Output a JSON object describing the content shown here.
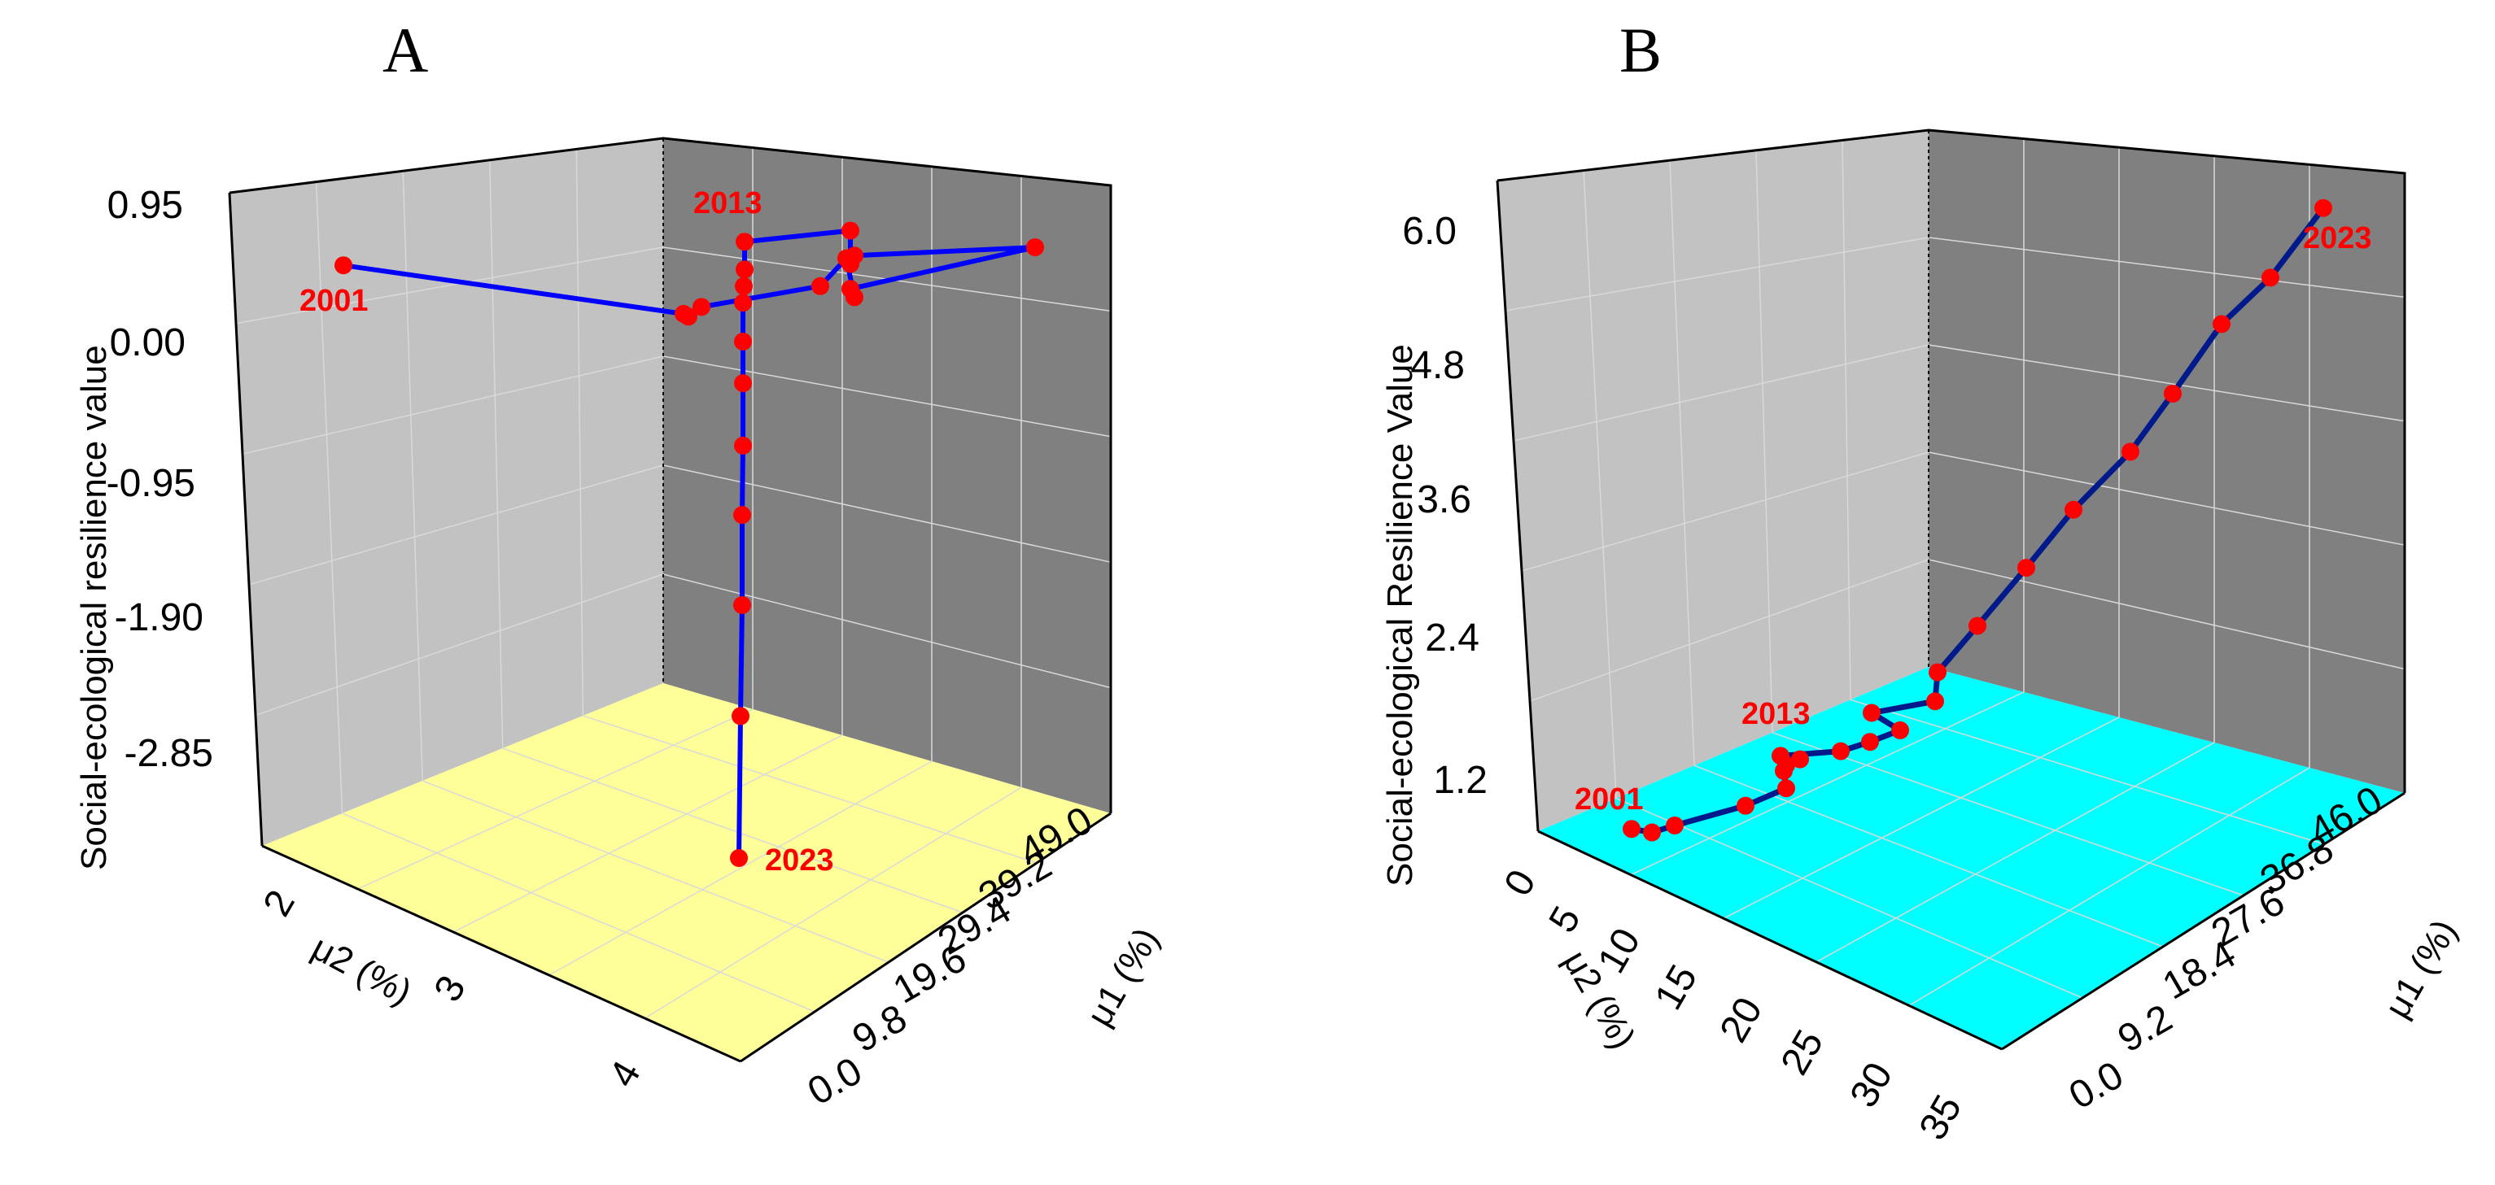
{
  "colors": {
    "back_wall": "#c2c2c2",
    "side_wall": "#808080",
    "floor_a": "#ffff99",
    "floor_b": "#00ffff",
    "line_a": "#0000ff",
    "line_b": "#001a8c",
    "points": "#ff0000"
  },
  "chart_data": [
    {
      "panel": "A",
      "type": "line3d",
      "zlabel": "Social-ecological resilience value",
      "xlabel": "μ1 (%)",
      "ylabel": "μ2 (%)",
      "z_ticks": [
        "0.95",
        "0.00",
        "-0.95",
        "-1.90",
        "-2.85"
      ],
      "x_ticks": [
        "0.0",
        "9.8",
        "19.6",
        "29.4",
        "39.2",
        "49.0"
      ],
      "y_ticks": [
        "2",
        "3",
        "4"
      ],
      "zlim": [
        -3.8,
        0.95
      ],
      "series": [
        {
          "name": "trajectory",
          "points": [
            {
              "year": "2001",
              "z": 0.55
            },
            {
              "year": "2002",
              "z": 0.2
            },
            {
              "year": "2003",
              "z": 0.18
            },
            {
              "year": "2004",
              "z": 0.25
            },
            {
              "year": "2005",
              "z": 0.4
            },
            {
              "year": "2006",
              "z": 0.6
            },
            {
              "year": "2007",
              "z": 0.32
            },
            {
              "year": "2008",
              "z": 0.38
            },
            {
              "year": "2009",
              "z": 0.68
            },
            {
              "year": "2010",
              "z": 0.62
            },
            {
              "year": "2011",
              "z": 0.56
            },
            {
              "year": "2012",
              "z": 0.8
            },
            {
              "year": "2013",
              "z": 0.72
            },
            {
              "year": "2014",
              "z": 0.52
            },
            {
              "year": "2015",
              "z": 0.4
            },
            {
              "year": "2016",
              "z": 0.28
            },
            {
              "year": "2017",
              "z": 0.0
            },
            {
              "year": "2018",
              "z": -0.3
            },
            {
              "year": "2019",
              "z": -0.75
            },
            {
              "year": "2020",
              "z": -1.25
            },
            {
              "year": "2021",
              "z": -1.9
            },
            {
              "year": "2022",
              "z": -2.7
            },
            {
              "year": "2023",
              "z": -3.65
            }
          ]
        }
      ],
      "annotations": [
        "2001",
        "2013",
        "2023"
      ]
    },
    {
      "panel": "B",
      "type": "line3d",
      "zlabel": "Social-ecological Resilience Value",
      "xlabel": "μ1 (%)",
      "ylabel": "μ2 (%)",
      "z_ticks": [
        "6.0",
        "4.8",
        "3.6",
        "2.4",
        "1.2"
      ],
      "x_ticks": [
        "0.0",
        "9.2",
        "18.4",
        "27.6",
        "36.8",
        "46.0"
      ],
      "y_ticks": [
        "0",
        "5",
        "10",
        "15",
        "20",
        "25",
        "30",
        "35"
      ],
      "zlim": [
        0.75,
        6.0
      ],
      "series": [
        {
          "name": "trajectory",
          "points": [
            {
              "year": "2001",
              "z": 0.75
            },
            {
              "year": "2002",
              "z": 0.72
            },
            {
              "year": "2003",
              "z": 0.78
            },
            {
              "year": "2004",
              "z": 0.95
            },
            {
              "year": "2005",
              "z": 1.1
            },
            {
              "year": "2006",
              "z": 1.25
            },
            {
              "year": "2007",
              "z": 1.3
            },
            {
              "year": "2008",
              "z": 1.35
            },
            {
              "year": "2009",
              "z": 1.38
            },
            {
              "year": "2010",
              "z": 1.42
            },
            {
              "year": "2011",
              "z": 1.5
            },
            {
              "year": "2012",
              "z": 1.6
            },
            {
              "year": "2013",
              "z": 1.75
            },
            {
              "year": "2014",
              "z": 1.85
            },
            {
              "year": "2015",
              "z": 2.1
            },
            {
              "year": "2016",
              "z": 2.5
            },
            {
              "year": "2017",
              "z": 3.0
            },
            {
              "year": "2018",
              "z": 3.5
            },
            {
              "year": "2019",
              "z": 4.0
            },
            {
              "year": "2020",
              "z": 4.5
            },
            {
              "year": "2021",
              "z": 5.1
            },
            {
              "year": "2022",
              "z": 5.5
            },
            {
              "year": "2023",
              "z": 6.1
            }
          ]
        }
      ],
      "annotations": [
        "2001",
        "2013",
        "2023"
      ]
    }
  ]
}
